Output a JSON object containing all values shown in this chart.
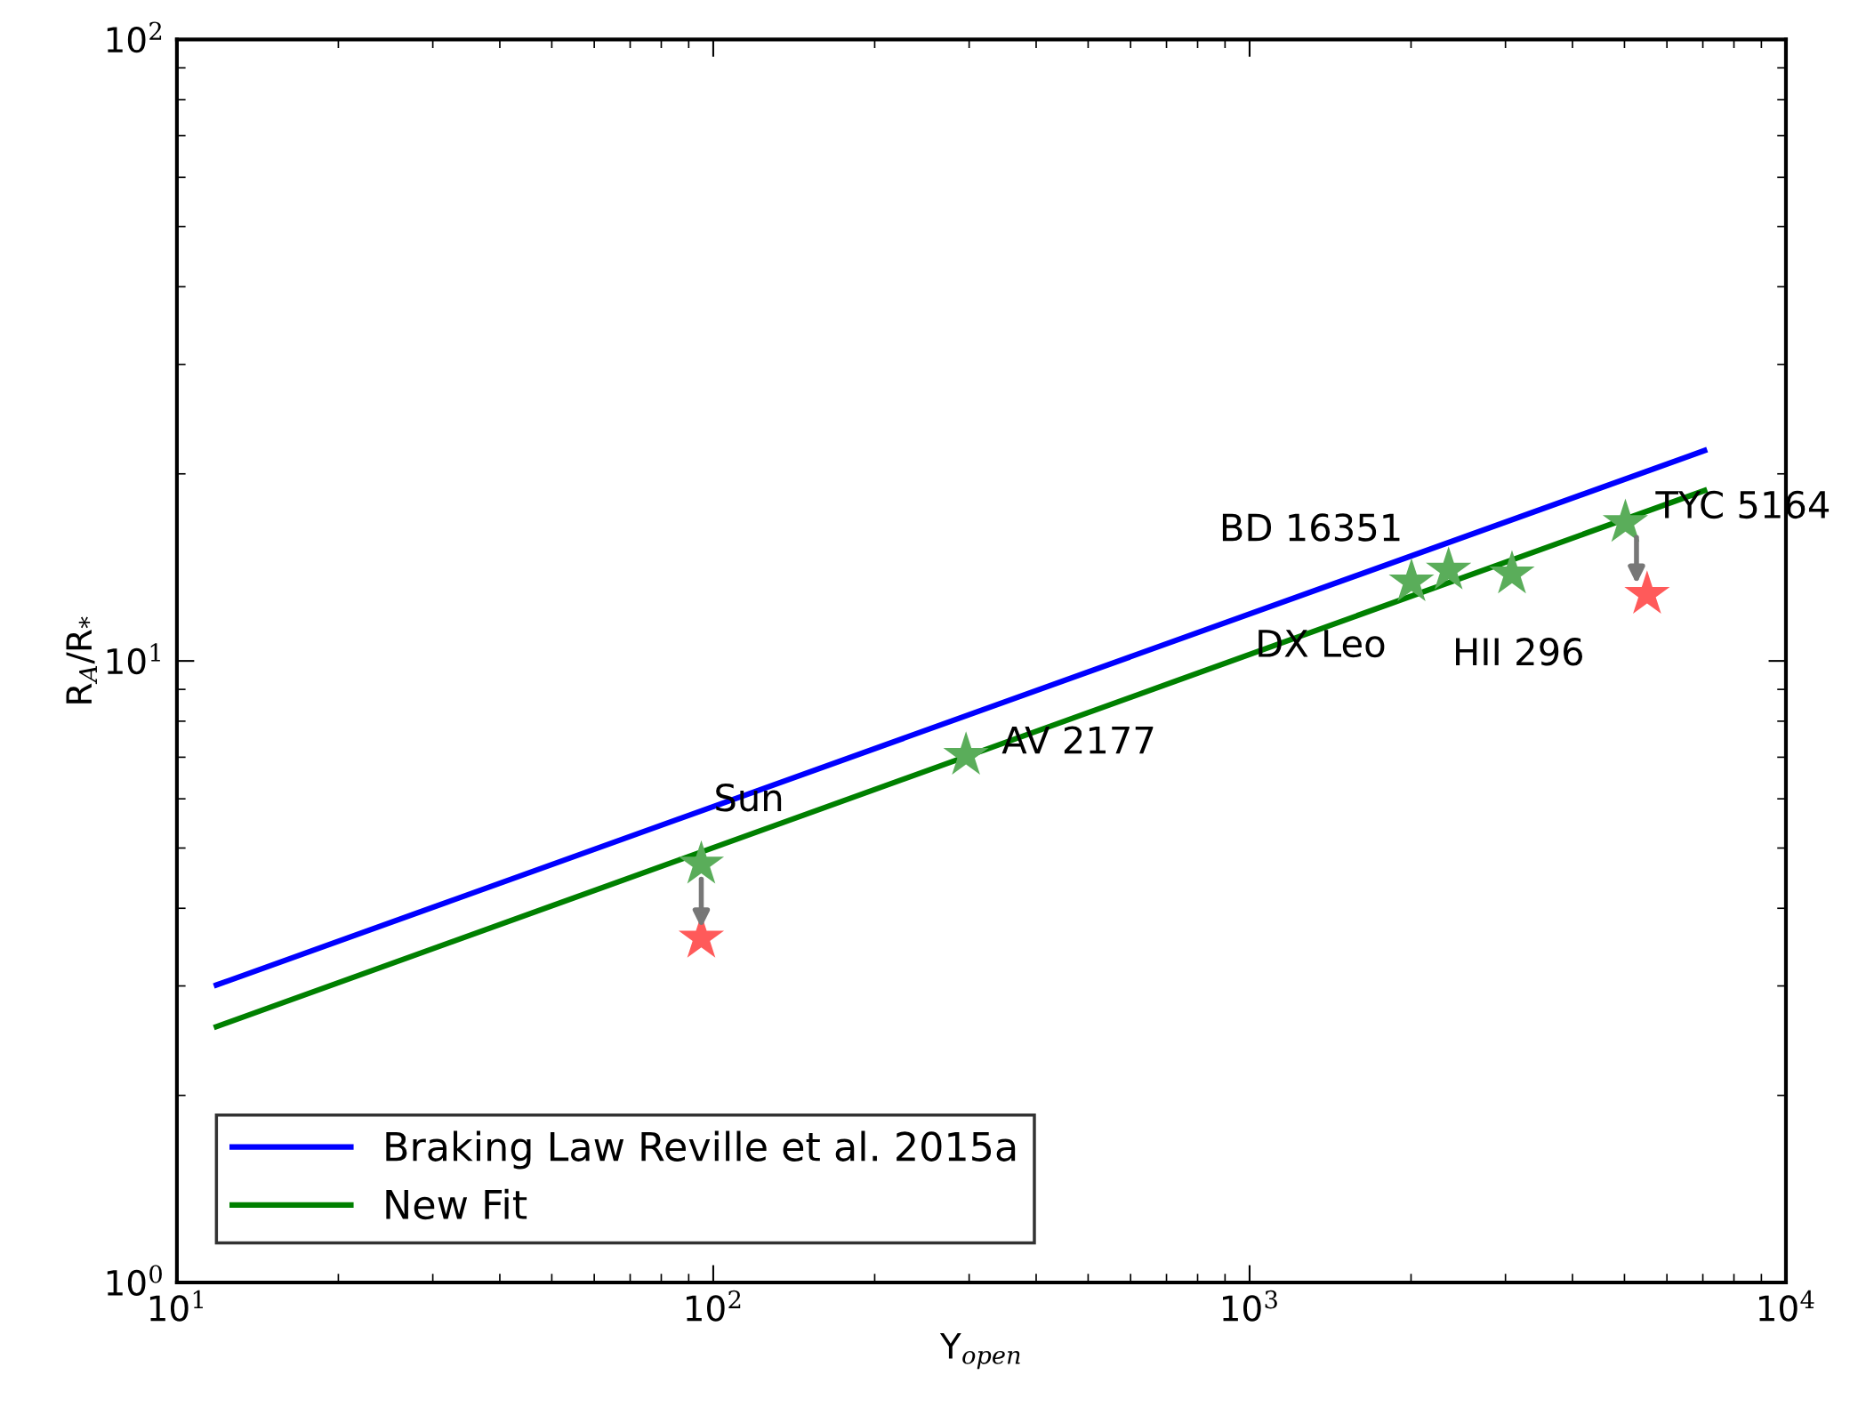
{
  "chart_data": {
    "type": "line",
    "xlabel": "Υ$_{open}$",
    "ylabel": "R$_{A}$/R$_{*}$",
    "log": "xy",
    "xlim": [
      10,
      10000
    ],
    "ylim": [
      1,
      100
    ],
    "xticks": [
      {
        "value": 10,
        "label": "10$^{1}$"
      },
      {
        "value": 100,
        "label": "10$^{2}$"
      },
      {
        "value": 1000,
        "label": "10$^{3}$"
      },
      {
        "value": 10000,
        "label": "10$^{4}$"
      }
    ],
    "yticks": [
      {
        "value": 1,
        "label": "10$^{0}$"
      },
      {
        "value": 10,
        "label": "10$^{1}$"
      },
      {
        "value": 100,
        "label": "10$^{2}$"
      }
    ],
    "grid": false,
    "legend": "bottom left",
    "series": [
      {
        "name": "Braking Law Reville et al. 2015a",
        "color": "#0000ff",
        "x": [
          11.85,
          7050
        ],
        "values": [
          3.01,
          21.8
        ]
      },
      {
        "name": "New Fit",
        "color": "#008000",
        "x": [
          11.85,
          7050
        ],
        "values": [
          2.58,
          18.8
        ]
      },
      {
        "type": "scatter",
        "marker": "star",
        "color": "#5aad5a",
        "x": [
          95,
          296,
          2004,
          2350,
          3085,
          5020
        ],
        "values": [
          4.71,
          7.05,
          13.4,
          14.0,
          13.8,
          16.7
        ]
      },
      {
        "type": "scatter",
        "marker": "star",
        "color": "#ff5a5a",
        "x": [
          95,
          5510
        ],
        "values": [
          3.58,
          12.8
        ]
      }
    ],
    "annotations": [
      "Sun",
      "AV 2177",
      "DX Leo",
      "BD 16351",
      "HII 296",
      "TYC 5164"
    ]
  }
}
